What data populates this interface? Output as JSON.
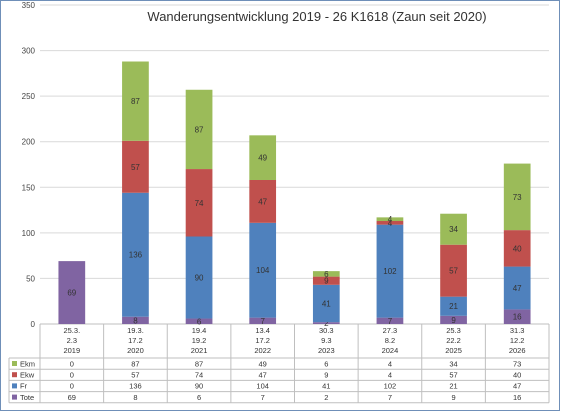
{
  "chart_data": {
    "type": "bar",
    "stacked": true,
    "title": "Wanderungsentwicklung  2019 - 26 K1618 (Zaun seit 2020)",
    "categories": [
      [
        "25.3.",
        "2.3",
        "2019"
      ],
      [
        "19.3.",
        "17.2",
        "2020"
      ],
      [
        "19.4",
        "19.2",
        "2021"
      ],
      [
        "13.4",
        "17.2",
        "2022"
      ],
      [
        "30.3",
        "9.3",
        "2023"
      ],
      [
        "27.3",
        "8.2",
        "2024"
      ],
      [
        "25.3",
        "22.2",
        "2025"
      ],
      [
        "31.3",
        "12.2",
        "2026"
      ]
    ],
    "yticks": [
      "0",
      "50",
      "100",
      "150",
      "200",
      "250",
      "300",
      "350"
    ],
    "ylim": [
      0,
      350
    ],
    "grid": true,
    "series": [
      {
        "name": "Tote",
        "color": "#8064a2",
        "values": [
          69,
          8,
          6,
          7,
          2,
          7,
          9,
          16
        ],
        "labels": [
          "69",
          "8",
          "6",
          "7",
          "2",
          "7",
          "9",
          "16"
        ]
      },
      {
        "name": "Fr",
        "color": "#4f81bd",
        "values": [
          0,
          136,
          90,
          104,
          41,
          102,
          21,
          47
        ],
        "labels": [
          "",
          "136",
          "90",
          "104",
          "41",
          "102",
          "21",
          "47"
        ]
      },
      {
        "name": "Ekw",
        "color": "#c0504d",
        "values": [
          0,
          57,
          74,
          47,
          9,
          4,
          57,
          40
        ],
        "labels": [
          "",
          "57",
          "74",
          "47",
          "9",
          "4",
          "57",
          "40"
        ]
      },
      {
        "name": "Ekm",
        "color": "#9bbb59",
        "values": [
          0,
          87,
          87,
          49,
          6,
          4,
          34,
          73
        ],
        "labels": [
          "",
          "87",
          "87",
          "49",
          "6",
          "4",
          "34",
          "73"
        ]
      }
    ]
  }
}
